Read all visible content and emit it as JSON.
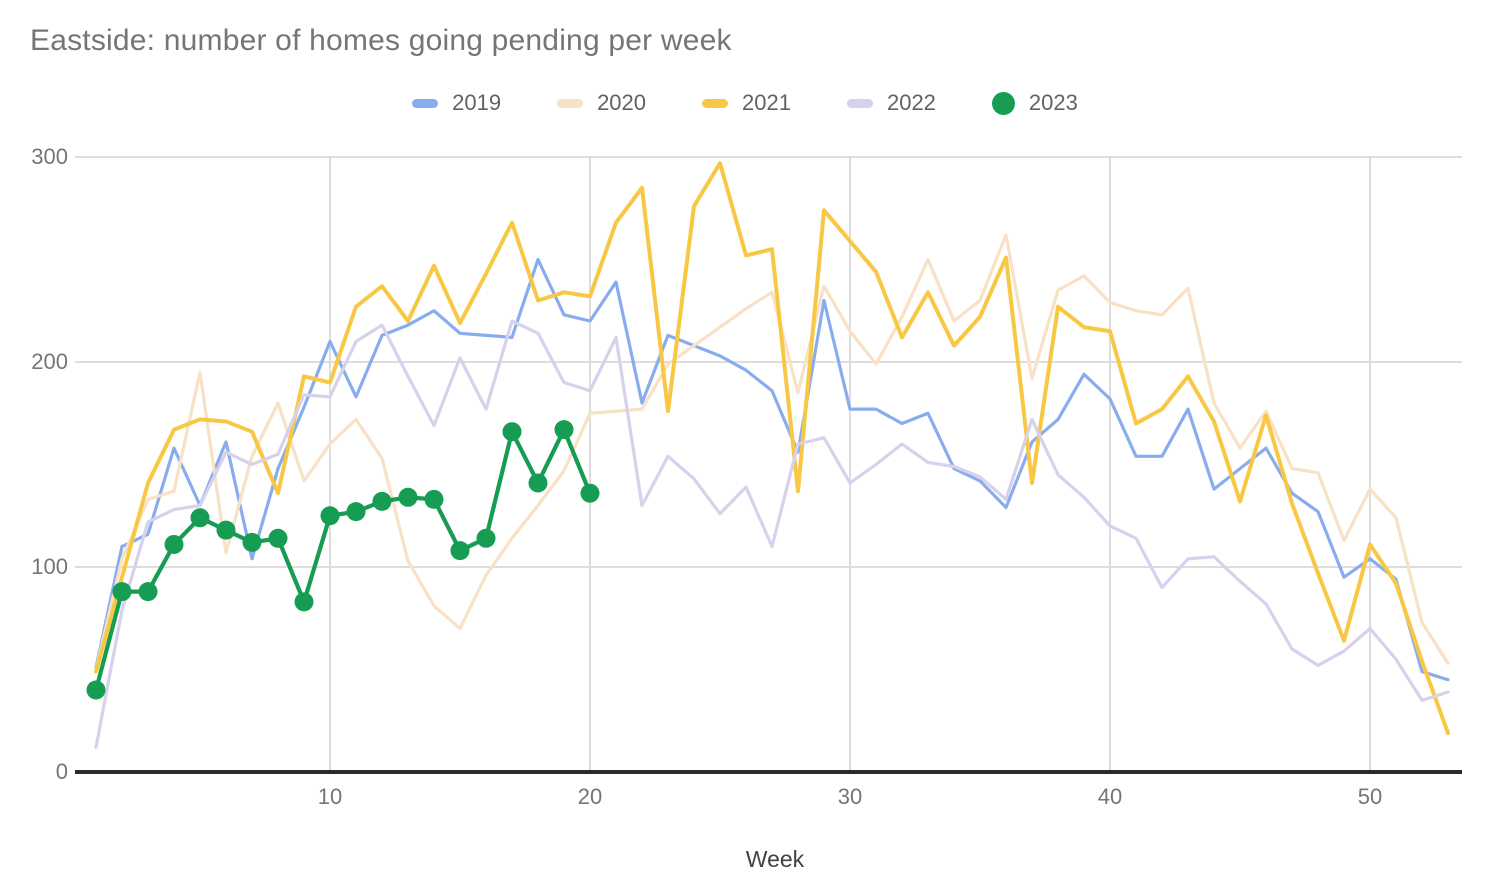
{
  "title": "Eastside: number of homes going pending per week",
  "x_axis": {
    "label": "Week",
    "ticks": [
      10,
      20,
      30,
      40,
      50
    ]
  },
  "y_axis": {
    "ticks": [
      0,
      100,
      200,
      300
    ]
  },
  "colors": {
    "grid": "#dddddd",
    "axis": "#2b2b2b",
    "title_text": "#757575",
    "tick_text": "#757575",
    "legend_text": "#5f6368",
    "axis_title_text": "#424242"
  },
  "chart_data": {
    "type": "line",
    "title": "Eastside: number of homes going pending per week",
    "xlabel": "Week",
    "ylabel": "",
    "x_start_week": 1,
    "xlim": [
      1,
      53
    ],
    "ylim": [
      0,
      300
    ],
    "x_ticks": [
      10,
      20,
      30,
      40,
      50
    ],
    "y_ticks": [
      0,
      100,
      200,
      300
    ],
    "grid": true,
    "legend_position": "top",
    "series": [
      {
        "name": "2019",
        "color": "#88adef",
        "style": "line",
        "width": 3.2,
        "values": [
          51,
          110,
          116,
          158,
          130,
          161,
          104,
          148,
          178,
          210,
          183,
          213,
          218,
          225,
          214,
          213,
          212,
          250,
          223,
          220,
          239,
          180,
          213,
          208,
          203,
          196,
          186,
          156,
          230,
          177,
          177,
          170,
          175,
          148,
          142,
          129,
          161,
          172,
          194,
          182,
          154,
          154,
          177,
          138,
          148,
          158,
          136,
          127,
          95,
          104,
          94,
          49,
          45
        ]
      },
      {
        "name": "2020",
        "color": "#f8e1c4",
        "style": "line",
        "width": 3.2,
        "values": [
          50,
          104,
          133,
          137,
          195,
          107,
          154,
          180,
          142,
          160,
          172,
          153,
          103,
          81,
          70,
          96,
          114,
          130,
          147,
          175,
          176,
          177,
          199,
          208,
          217,
          226,
          234,
          185,
          237,
          215,
          199,
          222,
          250,
          220,
          230,
          262,
          192,
          235,
          242,
          229,
          225,
          223,
          236,
          180,
          158,
          176,
          148,
          146,
          113,
          138,
          124,
          73,
          53
        ]
      },
      {
        "name": "2021",
        "color": "#f8c845",
        "style": "line",
        "width": 4,
        "values": [
          49,
          95,
          141,
          167,
          172,
          171,
          166,
          136,
          193,
          190,
          227,
          237,
          220,
          247,
          219,
          243,
          268,
          230,
          234,
          232,
          268,
          285,
          176,
          276,
          297,
          252,
          255,
          137,
          274,
          259,
          244,
          212,
          234,
          208,
          222,
          251,
          141,
          227,
          217,
          215,
          170,
          177,
          193,
          171,
          132,
          174,
          131,
          97,
          64,
          111,
          92,
          54,
          19
        ]
      },
      {
        "name": "2022",
        "color": "#d7d1eb",
        "style": "line",
        "width": 3.2,
        "values": [
          12,
          79,
          122,
          128,
          130,
          156,
          150,
          155,
          184,
          183,
          210,
          218,
          193,
          169,
          202,
          177,
          220,
          214,
          190,
          186,
          212,
          130,
          154,
          143,
          126,
          139,
          110,
          160,
          163,
          141,
          150,
          160,
          151,
          149,
          144,
          133,
          172,
          145,
          134,
          120,
          114,
          90,
          104,
          105,
          93,
          82,
          60,
          52,
          59,
          70,
          55,
          35,
          39
        ]
      },
      {
        "name": "2023",
        "color": "#169c53",
        "style": "line+markers",
        "width": 4.2,
        "marker_radius": 9.5,
        "values": [
          40,
          88,
          88,
          111,
          124,
          118,
          112,
          114,
          83,
          125,
          127,
          132,
          134,
          133,
          108,
          114,
          166,
          141,
          167,
          136
        ]
      }
    ]
  }
}
